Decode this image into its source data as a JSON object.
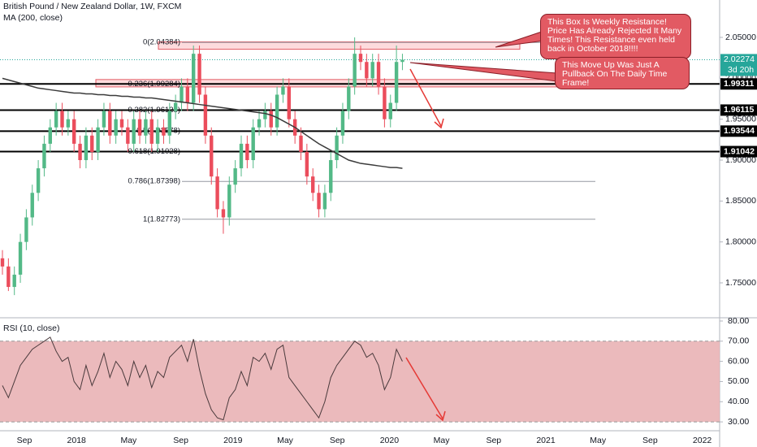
{
  "chart_data": [
    {
      "type": "candlestick",
      "title": "British Pound / New Zealand Dollar, 1W, FXCM",
      "categories": [
        null,
        null,
        null,
        null,
        null,
        null,
        null,
        null,
        null,
        null,
        null,
        null,
        null,
        null,
        null,
        null,
        null,
        null,
        null,
        null,
        null,
        null,
        null,
        null,
        null,
        null,
        null,
        null,
        null,
        null,
        null,
        null,
        null,
        null,
        null,
        null,
        null,
        null,
        null,
        null,
        null,
        null,
        null,
        null,
        null,
        null,
        null,
        null,
        null,
        null,
        null,
        null,
        null,
        null,
        null,
        null,
        null,
        null,
        null,
        null,
        null,
        null,
        null,
        null,
        null,
        null,
        null,
        null
      ],
      "open": [
        1.78,
        1.77,
        1.745,
        1.76,
        1.8,
        1.83,
        1.86,
        1.89,
        1.92,
        1.94,
        1.96,
        1.94,
        1.95,
        1.92,
        1.9,
        1.93,
        1.91,
        1.94,
        1.96,
        1.93,
        1.95,
        1.94,
        1.92,
        1.95,
        1.93,
        1.95,
        1.92,
        1.94,
        1.93,
        1.96,
        1.97,
        1.99,
        1.97,
        2.03,
        1.98,
        1.93,
        1.88,
        1.84,
        1.83,
        1.87,
        1.89,
        1.92,
        1.9,
        1.94,
        1.95,
        1.96,
        1.94,
        1.98,
        1.99,
        1.95,
        1.93,
        1.91,
        1.88,
        1.86,
        1.84,
        1.86,
        1.9,
        1.93,
        1.96,
        1.99,
        2.03,
        2.02,
        2.0,
        2.02,
        1.99,
        1.95,
        1.97,
        2.02
      ],
      "high": [
        1.79,
        1.78,
        1.77,
        1.81,
        1.84,
        1.87,
        1.9,
        1.93,
        1.95,
        1.97,
        1.97,
        1.96,
        1.96,
        1.93,
        1.94,
        1.94,
        1.95,
        1.97,
        1.97,
        1.96,
        1.96,
        1.95,
        1.96,
        1.96,
        1.96,
        1.96,
        1.95,
        1.95,
        1.97,
        1.98,
        2.0,
        2.0,
        2.04,
        2.04,
        1.99,
        1.94,
        1.89,
        1.85,
        1.88,
        1.9,
        1.93,
        1.93,
        1.95,
        1.96,
        1.97,
        1.97,
        1.99,
        2.0,
        2.0,
        1.96,
        1.94,
        1.92,
        1.89,
        1.87,
        1.87,
        1.91,
        1.94,
        1.97,
        2.0,
        2.05,
        2.04,
        2.03,
        2.03,
        2.03,
        2.0,
        1.98,
        2.04,
        2.03
      ],
      "low": [
        1.76,
        1.74,
        1.735,
        1.75,
        1.79,
        1.82,
        1.85,
        1.88,
        1.91,
        1.93,
        1.93,
        1.93,
        1.91,
        1.89,
        1.89,
        1.9,
        1.9,
        1.93,
        1.92,
        1.92,
        1.93,
        1.91,
        1.91,
        1.92,
        1.92,
        1.91,
        1.91,
        1.92,
        1.92,
        1.95,
        1.96,
        1.96,
        1.96,
        1.97,
        1.92,
        1.87,
        1.83,
        1.81,
        1.82,
        1.86,
        1.88,
        1.89,
        1.89,
        1.93,
        1.94,
        1.93,
        1.93,
        1.97,
        1.94,
        1.92,
        1.9,
        1.87,
        1.85,
        1.83,
        1.83,
        1.85,
        1.89,
        1.92,
        1.95,
        1.98,
        2.01,
        1.99,
        1.99,
        1.98,
        1.94,
        1.94,
        1.96,
        2.01
      ],
      "close": [
        1.77,
        1.745,
        1.76,
        1.8,
        1.83,
        1.86,
        1.89,
        1.92,
        1.94,
        1.96,
        1.94,
        1.95,
        1.92,
        1.9,
        1.93,
        1.91,
        1.94,
        1.96,
        1.93,
        1.95,
        1.94,
        1.92,
        1.95,
        1.93,
        1.95,
        1.92,
        1.94,
        1.93,
        1.96,
        1.97,
        1.99,
        1.97,
        2.03,
        1.98,
        1.93,
        1.88,
        1.84,
        1.83,
        1.87,
        1.89,
        1.92,
        1.9,
        1.94,
        1.95,
        1.96,
        1.94,
        1.98,
        1.99,
        1.95,
        1.93,
        1.91,
        1.88,
        1.86,
        1.84,
        1.86,
        1.9,
        1.93,
        1.96,
        1.99,
        2.03,
        2.02,
        2.0,
        2.02,
        1.99,
        1.95,
        1.97,
        2.02,
        2.02274
      ],
      "up_color": "#53b987",
      "down_color": "#eb4d5c",
      "series": [
        {
          "name": "MA (200, close)",
          "color": "#3b3b3b",
          "values": [
            2.0,
            1.998,
            1.996,
            1.994,
            1.992,
            1.99,
            1.988,
            1.987,
            1.986,
            1.985,
            1.984,
            1.983,
            1.982,
            1.982,
            1.981,
            1.981,
            1.98,
            1.98,
            1.979,
            1.979,
            1.978,
            1.978,
            1.977,
            1.977,
            1.976,
            1.976,
            1.975,
            1.974,
            1.973,
            1.972,
            1.971,
            1.97,
            1.969,
            1.968,
            1.967,
            1.966,
            1.965,
            1.964,
            1.963,
            1.962,
            1.961,
            1.96,
            1.959,
            1.958,
            1.957,
            1.955,
            1.952,
            1.948,
            1.944,
            1.94,
            1.935,
            1.93,
            1.925,
            1.92,
            1.916,
            1.912,
            1.908,
            1.904,
            1.9,
            1.898,
            1.896,
            1.895,
            1.894,
            1.893,
            1.892,
            1.891,
            1.891,
            1.89
          ]
        }
      ],
      "ylim": [
        1.7083,
        2.0957
      ],
      "yticks": [
        {
          "value": 1.75,
          "label": "1.75000"
        },
        {
          "value": 1.8,
          "label": "1.80000"
        },
        {
          "value": 1.85,
          "label": "1.85000"
        },
        {
          "value": 1.9,
          "label": "1.90000"
        },
        {
          "value": 1.95,
          "label": "1.95000"
        },
        {
          "value": 2.0,
          "label": "2.00000"
        },
        {
          "value": 2.05,
          "label": "2.05000"
        }
      ],
      "grid": false,
      "levels": [
        1.99311,
        1.96115,
        1.93544,
        1.91042
      ],
      "level_color": "#000000",
      "current_price": 2.02274,
      "countdown": "3d 20h",
      "current_color": "#26a69a",
      "fib": [
        {
          "value": 2.04384,
          "label": "0(2.04384)"
        },
        {
          "value": 1.99284,
          "label": "0.236(1.99284)"
        },
        {
          "value": 1.96128,
          "label": "0.382(1.96128)"
        },
        {
          "value": 1.93578,
          "label": "0.5(1.93578)"
        },
        {
          "value": 1.91028,
          "label": "0.618(1.91028)"
        },
        {
          "value": 1.87398,
          "label": "0.786(1.87398)"
        },
        {
          "value": 1.82773,
          "label": "1(1.82773)"
        }
      ],
      "zones": [
        {
          "top": 2.0445,
          "bottom": 2.0355
        },
        {
          "top": 1.9985,
          "bottom": 1.9895
        }
      ],
      "annotations": [
        "This Box Is Weekly Resistance! Price Has Already Rejected It Many Times! This Resistance even held back in October 2018!!!!",
        "This Move Up Was Just A Pullback On The Daily Time Frame!"
      ]
    },
    {
      "type": "line",
      "title": "RSI (10, close)",
      "categories": [
        null,
        null,
        null,
        null,
        null,
        null,
        null,
        null,
        null,
        null,
        null,
        null,
        null,
        null,
        null,
        null,
        null,
        null,
        null,
        null,
        null,
        null,
        null,
        null,
        null,
        null,
        null,
        null,
        null,
        null,
        null,
        null,
        null,
        null,
        null,
        null,
        null,
        null,
        null,
        null,
        null,
        null,
        null,
        null,
        null,
        null,
        null,
        null,
        null,
        null,
        null,
        null,
        null,
        null,
        null,
        null,
        null,
        null,
        null,
        null,
        null,
        null,
        null,
        null,
        null,
        null,
        null,
        null
      ],
      "values": [
        48,
        42,
        50,
        58,
        62,
        66,
        68,
        70,
        72,
        65,
        60,
        62,
        50,
        46,
        58,
        48,
        55,
        64,
        52,
        60,
        56,
        48,
        60,
        52,
        58,
        47,
        55,
        52,
        62,
        65,
        68,
        60,
        71,
        56,
        44,
        36,
        32,
        31,
        42,
        46,
        55,
        48,
        62,
        60,
        64,
        56,
        66,
        68,
        52,
        48,
        44,
        40,
        36,
        32,
        40,
        52,
        58,
        62,
        66,
        70,
        68,
        62,
        64,
        58,
        46,
        52,
        66,
        60
      ],
      "color": "#4a3a3c",
      "ylim": [
        25.6,
        81.2
      ],
      "yticks": [
        {
          "value": 30,
          "label": "30.00"
        },
        {
          "value": 40,
          "label": "40.00"
        },
        {
          "value": 50,
          "label": "50.00"
        },
        {
          "value": 60,
          "label": "60.00"
        },
        {
          "value": 70,
          "label": "70.00"
        },
        {
          "value": 80,
          "label": "80.00"
        }
      ],
      "band": [
        30,
        70
      ],
      "band_color": "#e9b3b5",
      "time_labels": [
        "Sep",
        "2018",
        "May",
        "Sep",
        "2019",
        "May",
        "Sep",
        "2020",
        "May",
        "Sep",
        "2021",
        "May",
        "Sep",
        "2022"
      ]
    }
  ]
}
